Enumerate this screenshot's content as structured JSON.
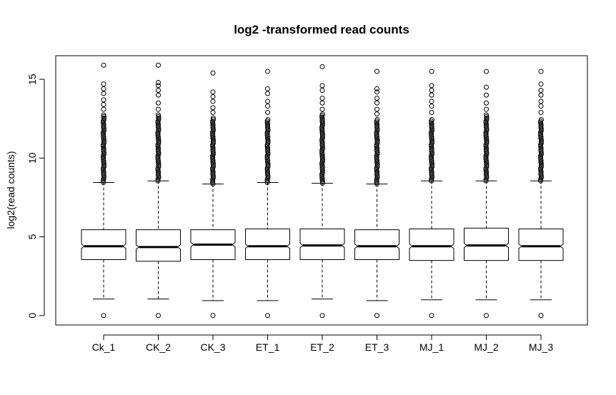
{
  "chart_data": {
    "type": "boxplot",
    "title": "log2 -transformed  read  counts",
    "xlabel": "",
    "ylabel": "log2(read  counts)",
    "ylim": [
      -0.6,
      16.5
    ],
    "yticks": [
      0,
      5,
      10,
      15
    ],
    "grid": false,
    "notched": true,
    "categories": [
      "Ck_1",
      "CK_2",
      "CK_3",
      "ET_1",
      "ET_2",
      "ET_3",
      "MJ_1",
      "MJ_2",
      "MJ_3"
    ],
    "boxes": [
      {
        "name": "Ck_1",
        "min": 1.05,
        "q1": 3.55,
        "median": 4.4,
        "q3": 5.45,
        "max": 8.45,
        "outliers_low": [
          0
        ],
        "dense_from": 8.45,
        "dense_to": 12.8,
        "outliers_high": [
          13.1,
          13.4,
          13.7,
          14.1,
          14.4,
          14.7,
          15.9
        ]
      },
      {
        "name": "CK_2",
        "min": 1.05,
        "q1": 3.45,
        "median": 4.35,
        "q3": 5.45,
        "max": 8.55,
        "outliers_low": [
          0
        ],
        "dense_from": 8.55,
        "dense_to": 12.8,
        "outliers_high": [
          13.1,
          13.5,
          14.0,
          14.3,
          14.6,
          14.8,
          15.9
        ]
      },
      {
        "name": "CK_3",
        "min": 0.95,
        "q1": 3.55,
        "median": 4.5,
        "q3": 5.45,
        "max": 8.35,
        "outliers_low": [
          0
        ],
        "dense_from": 8.35,
        "dense_to": 12.6,
        "outliers_high": [
          12.9,
          13.2,
          13.6,
          13.9,
          14.2,
          15.4
        ]
      },
      {
        "name": "ET_1",
        "min": 0.95,
        "q1": 3.55,
        "median": 4.4,
        "q3": 5.5,
        "max": 8.45,
        "outliers_low": [
          0
        ],
        "dense_from": 8.45,
        "dense_to": 12.5,
        "outliers_high": [
          12.9,
          13.3,
          13.6,
          14.1,
          14.4,
          15.5
        ]
      },
      {
        "name": "ET_2",
        "min": 1.05,
        "q1": 3.55,
        "median": 4.45,
        "q3": 5.5,
        "max": 8.4,
        "outliers_low": [
          0
        ],
        "dense_from": 8.4,
        "dense_to": 12.8,
        "outliers_high": [
          13.1,
          13.5,
          13.8,
          14.3,
          14.6,
          15.8
        ]
      },
      {
        "name": "ET_3",
        "min": 0.95,
        "q1": 3.55,
        "median": 4.4,
        "q3": 5.45,
        "max": 8.35,
        "outliers_low": [
          0
        ],
        "dense_from": 8.35,
        "dense_to": 12.5,
        "outliers_high": [
          12.8,
          13.1,
          13.5,
          13.8,
          14.2,
          14.4,
          15.5
        ]
      },
      {
        "name": "MJ_1",
        "min": 1.0,
        "q1": 3.5,
        "median": 4.4,
        "q3": 5.5,
        "max": 8.55,
        "outliers_low": [
          0
        ],
        "dense_from": 8.55,
        "dense_to": 12.5,
        "outliers_high": [
          12.9,
          13.3,
          13.6,
          14.0,
          14.3,
          14.6,
          15.5
        ]
      },
      {
        "name": "MJ_2",
        "min": 1.0,
        "q1": 3.5,
        "median": 4.45,
        "q3": 5.55,
        "max": 8.55,
        "outliers_low": [
          0
        ],
        "dense_from": 8.55,
        "dense_to": 12.8,
        "outliers_high": [
          13.1,
          13.5,
          14.0,
          14.5,
          15.5
        ]
      },
      {
        "name": "MJ_3",
        "min": 1.0,
        "q1": 3.5,
        "median": 4.4,
        "q3": 5.5,
        "max": 8.55,
        "outliers_low": [
          0
        ],
        "dense_from": 8.55,
        "dense_to": 12.5,
        "outliers_high": [
          12.9,
          13.3,
          13.6,
          14.0,
          14.3,
          14.7,
          15.5
        ]
      }
    ]
  }
}
